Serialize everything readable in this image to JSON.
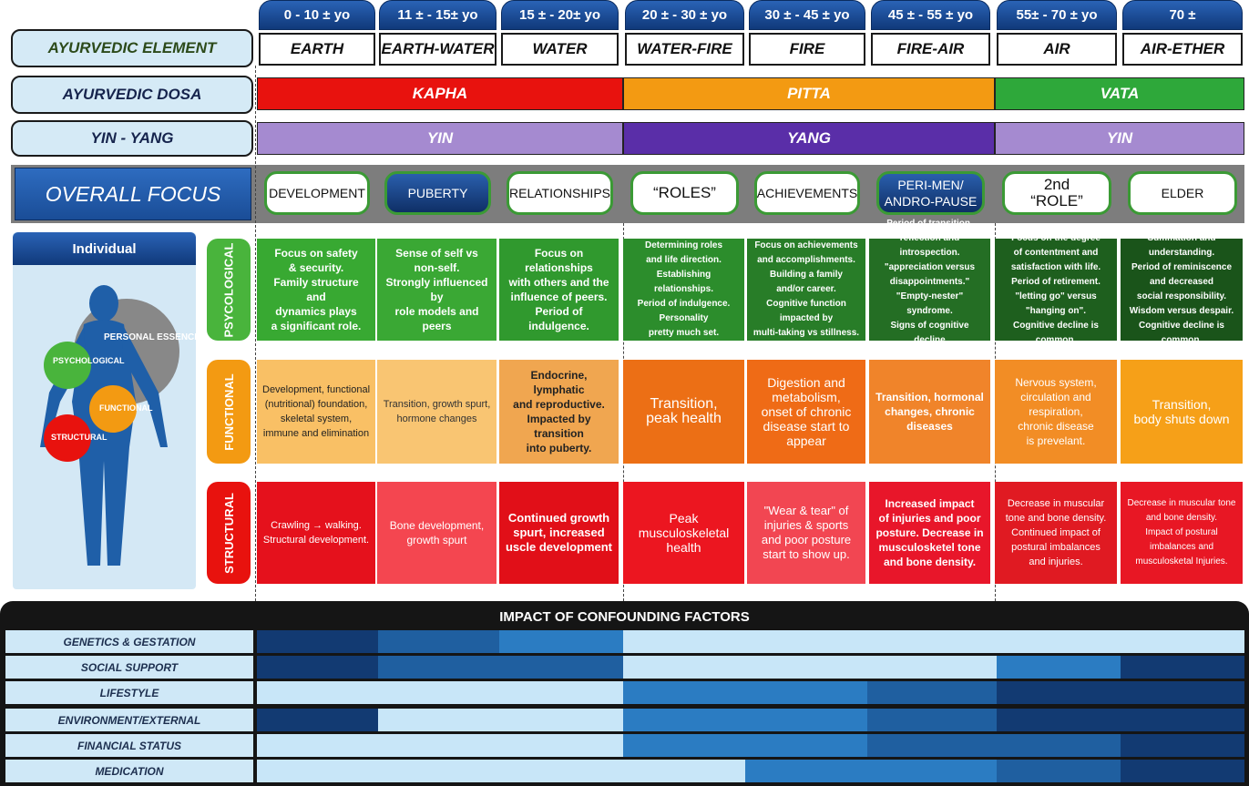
{
  "ages": [
    "0 - 10 ± yo",
    "11 ± - 15± yo",
    "15 ± - 20± yo",
    "20 ± - 30 ± yo",
    "30 ± - 45 ± yo",
    "45 ± - 55 ± yo",
    "55± - 70 ± yo",
    "70 ±"
  ],
  "row_labels": {
    "element": "AYURVEDIC ELEMENT",
    "dosa": "AYURVEDIC DOSA",
    "yinyang": "YIN - YANG",
    "focus": "OVERALL  FOCUS"
  },
  "elements": [
    "EARTH",
    "EARTH-WATER",
    "WATER",
    "WATER-FIRE",
    "FIRE",
    "FIRE-AIR",
    "AIR",
    "AIR-ETHER"
  ],
  "dosas": [
    "KAPHA",
    "PITTA",
    "VATA"
  ],
  "yinyang": [
    "YIN",
    "YANG",
    "YIN"
  ],
  "focus": [
    "DEVELOPMENT",
    "PUBERTY",
    "RELATIONSHIPS",
    "“ROLES”",
    "ACHIEVEMENTS",
    "PERI-MEN/\nANDRO-PAUSE",
    "2nd\n“ROLE”",
    "ELDER"
  ],
  "individual": {
    "title": "Individual",
    "labels": {
      "psychological": "PSYCHOLOGICAL",
      "personal": "PERSONAL ESSENCE",
      "functional": "FUNCTIONAL",
      "structural": "STRUCTURAL"
    }
  },
  "categories": [
    "PSYCOLOGICAL",
    "FUNCTIONAL",
    "STRUCTURAL"
  ],
  "psych": [
    "Focus on safety\n& security.\nFamily structure and\ndynamics plays\na significant role.",
    "Sense of self vs non-self.\nStrongly influenced by\nrole models and peers",
    "Focus on\nrelationships\nwith others and the\ninfluence of peers.\nPeriod of indulgence.",
    "Determining roles\nand life direction.\nEstablishing relationships.\nPeriod of indulgence.\nPersonality\npretty much set.",
    "Focus on achievements\nand accomplishments.\nBuilding a family\nand/or career.\nCognitive function\nimpacted by\nmulti-taking vs stillness.",
    "Period of transition,\nreflection and introspection.\n\"appreciation versus\ndisappointments.\"\n\"Empty-nester\" syndrome.\nSigns of cognitive decline\nstart to appear.",
    "Focus on the degree\nof contentment and\nsatisfaction with life.\nPeriod of retirement.\n\"letting go\" versus\n\"hanging on\".\nCognitive decline is common.",
    "Summation and\nunderstanding.\nPeriod of reminiscence\nand decreased\nsocial responsibility.\nWisdom versus despair.\nCognitive decline is common."
  ],
  "func": [
    "Development, functional\n(nutritional) foundation,\nskeletal system,\nimmune and elimination",
    "Transition, growth spurt,\nhormone changes",
    "Endocrine, lymphatic\nand reproductive.\nImpacted by transition\ninto puberty.",
    "Transition,\npeak health",
    "Digestion and\nmetabolism,\nonset of chronic\ndisease start to\nappear",
    "Transition, hormonal\nchanges, chronic\ndiseases",
    "Nervous system,\ncirculation and\nrespiration,\nchronic disease\nis prevelant.",
    "Transition,\nbody shuts down"
  ],
  "struct": [
    "Crawling → walking.\nStructural development.",
    "Bone development,\ngrowth spurt",
    "Continued growth\nspurt, increased\nuscle development",
    "Peak\nmusculoskeletal\nhealth",
    "\"Wear & tear\" of\ninjuries & sports\nand poor posture\nstart to show up.",
    "Increased impact\nof injuries and poor\nposture. Decrease in\nmusculosketel tone\nand bone density.",
    "Decrease in muscular\ntone and bone density.\nContinued impact of\npostural imbalances\nand injuries.",
    "Decrease in muscular tone\nand bone density.\nImpact of postural\nimbalances and\nmusculosketal Injuries."
  ],
  "confounding": {
    "title": "IMPACT OF CONFOUNDING FACTORS",
    "rows": [
      {
        "label": "GENETICS & GESTATION",
        "levels": [
          4,
          3,
          2,
          0,
          0,
          0,
          0,
          0
        ]
      },
      {
        "label": "SOCIAL SUPPORT",
        "levels": [
          4,
          3,
          3,
          0,
          0,
          0,
          2,
          4
        ]
      },
      {
        "label": "LIFESTYLE",
        "levels": [
          0,
          0,
          0,
          2,
          2,
          3,
          4,
          4
        ]
      },
      {
        "label": "ENVIRONMENT/EXTERNAL",
        "levels": [
          4,
          0,
          0,
          2,
          2,
          3,
          4,
          4
        ]
      },
      {
        "label": "FINANCIAL STATUS",
        "levels": [
          0,
          0,
          0,
          2,
          2,
          3,
          3,
          4
        ]
      },
      {
        "label": "MEDICATION",
        "levels": [
          0,
          0,
          0,
          0,
          2,
          2,
          3,
          4
        ]
      }
    ]
  },
  "colors": {
    "kapha": "#e8120e",
    "pitta": "#f39a12",
    "vata": "#2ea83a",
    "yin": "#a58ad0",
    "yang": "#5a2ea8",
    "level0": "#c8e6f8",
    "level1": "#8cc4ec",
    "level2": "#2b7cc2",
    "level3": "#1f5fa0",
    "level4": "#123a72"
  }
}
